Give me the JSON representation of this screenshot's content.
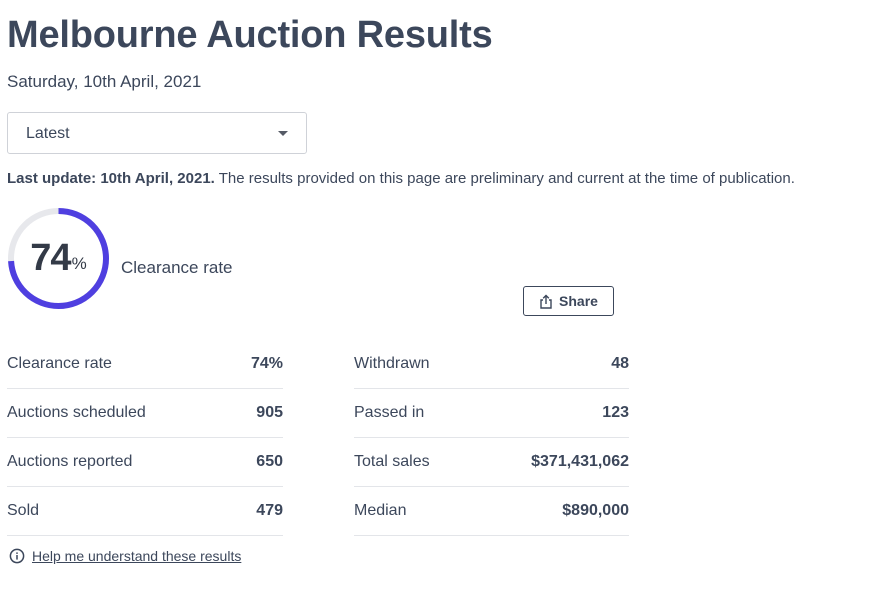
{
  "page": {
    "title": "Melbourne Auction Results",
    "date": "Saturday, 10th April, 2021"
  },
  "filter": {
    "selected": "Latest",
    "icon": "chevron-down-icon"
  },
  "notice": {
    "bold": "Last update: 10th April, 2021.",
    "text": " The results provided on this page are preliminary and current at the time of publication."
  },
  "summary": {
    "value": "74",
    "unit": "%",
    "label": "Clearance rate",
    "fraction": 0.74,
    "ring_color": "#4f3fe0",
    "track_color": "#e7e8ec"
  },
  "share": {
    "label": "Share",
    "icon": "share-icon"
  },
  "stats_left": [
    {
      "label": "Clearance rate",
      "value": "74%"
    },
    {
      "label": "Auctions scheduled",
      "value": "905"
    },
    {
      "label": "Auctions reported",
      "value": "650"
    },
    {
      "label": "Sold",
      "value": "479"
    }
  ],
  "stats_right": [
    {
      "label": "Withdrawn",
      "value": "48"
    },
    {
      "label": "Passed in",
      "value": "123"
    },
    {
      "label": "Total sales",
      "value": "$371,431,062"
    },
    {
      "label": "Median",
      "value": "$890,000"
    }
  ],
  "help": {
    "label": "Help me understand these results",
    "icon": "info-icon"
  }
}
